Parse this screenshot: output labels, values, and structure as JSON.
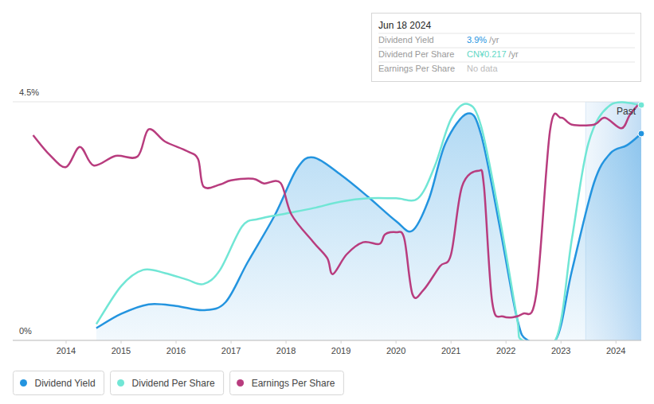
{
  "chart_data": {
    "type": "line",
    "xlim": [
      2013.03,
      2024.46
    ],
    "xticks": [
      2014,
      2015,
      2016,
      2017,
      2018,
      2019,
      2020,
      2021,
      2022,
      2023,
      2024
    ],
    "ylim": [
      0,
      4.5
    ],
    "yticks": [
      {
        "value": 0,
        "label": "0%"
      },
      {
        "value": 4.5,
        "label": "4.5%"
      }
    ],
    "y2lim": [
      0,
      0.22
    ],
    "grid": true,
    "legend": "bottom-left",
    "annotations": [
      {
        "text": "Past",
        "x_start": 2023.45
      }
    ],
    "tooltip": {
      "title": "Jun 18 2024",
      "rows": [
        {
          "label": "Dividend Yield",
          "value": "3.9%",
          "unit": "/yr"
        },
        {
          "label": "Dividend Per Share",
          "value": "CN¥0.217",
          "unit": "/yr"
        },
        {
          "label": "Earnings Per Share",
          "value": "No data"
        }
      ]
    },
    "series": [
      {
        "name": "Dividend Yield",
        "color": "#2394df",
        "type": "area",
        "x": [
          2014.55,
          2015.0,
          2015.5,
          2016.0,
          2016.5,
          2016.9,
          2017.3,
          2017.8,
          2018.2,
          2018.5,
          2019.0,
          2019.5,
          2020.0,
          2020.3,
          2020.6,
          2020.9,
          2021.3,
          2021.55,
          2021.9,
          2022.2,
          2022.4,
          2022.9,
          2023.2,
          2023.6,
          2023.9,
          2024.2,
          2024.46
        ],
        "values": [
          0.23,
          0.5,
          0.68,
          0.65,
          0.57,
          0.72,
          1.47,
          2.37,
          3.24,
          3.45,
          3.12,
          2.7,
          2.25,
          2.07,
          2.67,
          3.72,
          4.28,
          3.87,
          2.07,
          0.42,
          0,
          0,
          1.32,
          2.97,
          3.53,
          3.68,
          3.9
        ]
      },
      {
        "name": "Dividend Per Share",
        "color": "#71e6d5",
        "type": "line",
        "axis": "y2",
        "x": [
          2014.55,
          2015.0,
          2015.4,
          2015.8,
          2016.2,
          2016.5,
          2016.8,
          2017.2,
          2017.5,
          2018.0,
          2018.5,
          2019.0,
          2019.5,
          2020.0,
          2020.4,
          2020.7,
          2021.0,
          2021.3,
          2021.55,
          2021.9,
          2022.2,
          2022.3,
          2022.9,
          2023.2,
          2023.5,
          2023.9,
          2024.46
        ],
        "values": [
          0.015,
          0.05,
          0.065,
          0.062,
          0.056,
          0.052,
          0.065,
          0.105,
          0.112,
          0.117,
          0.122,
          0.128,
          0.131,
          0.131,
          0.131,
          0.16,
          0.204,
          0.218,
          0.197,
          0.109,
          0.021,
          0,
          0,
          0.094,
          0.182,
          0.217,
          0.217
        ]
      },
      {
        "name": "Earnings Per Share",
        "color": "#b83c7e",
        "type": "line",
        "x": [
          2013.4,
          2013.7,
          2014.0,
          2014.25,
          2014.5,
          2014.9,
          2015.3,
          2015.5,
          2015.8,
          2016.2,
          2016.4,
          2016.5,
          2016.8,
          2017.0,
          2017.4,
          2017.6,
          2017.9,
          2018.1,
          2018.5,
          2018.75,
          2018.85,
          2019.1,
          2019.4,
          2019.7,
          2019.8,
          2020.0,
          2020.15,
          2020.3,
          2020.5,
          2020.8,
          2021.0,
          2021.2,
          2021.5,
          2021.6,
          2021.75,
          2021.95,
          2022.3,
          2022.55,
          2022.8,
          2023.0,
          2023.2,
          2023.6,
          2023.8,
          2024.1,
          2024.25,
          2024.4
        ],
        "values": [
          3.87,
          3.5,
          3.27,
          3.65,
          3.3,
          3.48,
          3.47,
          3.98,
          3.75,
          3.57,
          3.42,
          2.9,
          2.94,
          3.02,
          3.05,
          2.96,
          2.97,
          2.37,
          1.85,
          1.55,
          1.25,
          1.62,
          1.85,
          1.82,
          2.0,
          2.04,
          1.92,
          0.87,
          0.95,
          1.4,
          1.62,
          2.9,
          3.2,
          2.9,
          0.72,
          0.45,
          0.5,
          0.87,
          3.95,
          4.2,
          4.07,
          4.07,
          4.2,
          4.0,
          4.25,
          4.44
        ]
      }
    ]
  }
}
